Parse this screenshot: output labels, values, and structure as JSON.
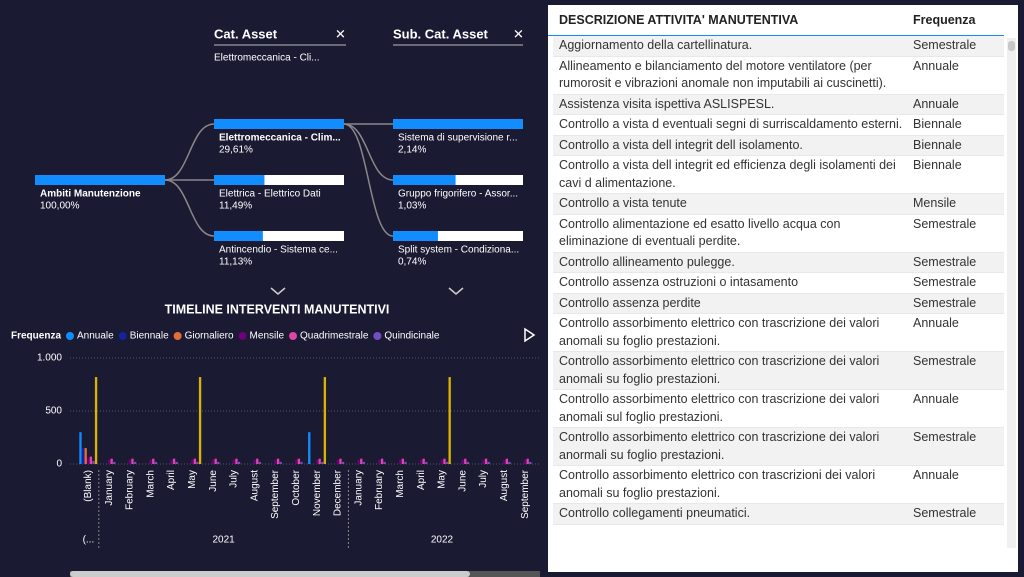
{
  "tree": {
    "levels": [
      {
        "nodes": [
          {
            "label": "Ambiti Manutenzione",
            "value": {
              "value": 100,
              "label": "100,00%"
            }
          }
        ]
      },
      {
        "header": "Cat. Asset",
        "subtitle": "Elettromeccanica - Cli...",
        "nodes": [
          {
            "label": "Elettromeccanica - Clim...",
            "value": {
              "value": 29.61,
              "label": "29,61%"
            }
          },
          {
            "label": "Elettrica - Elettrico Dati",
            "value": {
              "value": 11.49,
              "label": "11,49%"
            }
          },
          {
            "label": "Antincendio - Sistema ce...",
            "value": {
              "value": 11.13,
              "label": "11,13%"
            }
          }
        ]
      },
      {
        "header": "Sub. Cat. Asset",
        "nodes": [
          {
            "label": "Sistema di supervisione r...",
            "value": {
              "value": 2.14,
              "label": "2,14%"
            }
          },
          {
            "label": "Gruppo frigorifero - Assor...",
            "value": {
              "value": 1.03,
              "label": "1,03%"
            }
          },
          {
            "label": "Split system - Condiziona...",
            "value": {
              "value": 0.74,
              "label": "0,74%"
            }
          }
        ]
      }
    ]
  },
  "chart_data": {
    "type": "bar",
    "title": "TIMELINE INTERVENTI MANUTENTIVI",
    "legend_title": "Frequenza",
    "categories": [
      "(Blank)",
      "January",
      "February",
      "March",
      "April",
      "May",
      "June",
      "July",
      "August",
      "September",
      "October",
      "November",
      "December",
      "January",
      "February",
      "March",
      "April",
      "May",
      "June",
      "July",
      "August",
      "September"
    ],
    "years": [
      {
        "label": "(...",
        "span": [
          0,
          0
        ]
      },
      {
        "label": "2021",
        "span": [
          1,
          12
        ]
      },
      {
        "label": "2022",
        "span": [
          13,
          21
        ]
      }
    ],
    "ylim": [
      0,
      1000
    ],
    "yticks": [
      0,
      500,
      {
        "value": 1000,
        "label": "1.000"
      }
    ],
    "series": [
      {
        "name": "Annuale",
        "color": "#118dff",
        "values": [
          300,
          0,
          0,
          0,
          0,
          0,
          0,
          0,
          0,
          0,
          0,
          300,
          0,
          0,
          0,
          0,
          0,
          0,
          0,
          0,
          0,
          0
        ]
      },
      {
        "name": "Biennale",
        "color": "#12239e",
        "values": [
          150,
          0,
          0,
          0,
          0,
          0,
          0,
          0,
          0,
          0,
          0,
          0,
          0,
          0,
          0,
          0,
          0,
          0,
          0,
          0,
          0,
          0
        ]
      },
      {
        "name": "Giornaliero",
        "color": "#e66c37",
        "values": [
          150,
          0,
          0,
          0,
          0,
          0,
          0,
          0,
          0,
          0,
          0,
          0,
          0,
          0,
          0,
          0,
          0,
          0,
          0,
          0,
          0,
          0
        ]
      },
      {
        "name": "Mensile",
        "color": "#6b007b",
        "values": [
          60,
          40,
          40,
          40,
          40,
          40,
          40,
          40,
          40,
          40,
          40,
          40,
          40,
          40,
          40,
          40,
          40,
          40,
          40,
          40,
          40,
          40
        ]
      },
      {
        "name": "Quadrimestrale",
        "color": "#e044a7",
        "values": [
          70,
          50,
          50,
          50,
          50,
          50,
          50,
          50,
          50,
          50,
          50,
          50,
          50,
          50,
          50,
          50,
          50,
          50,
          50,
          50,
          50,
          50
        ]
      },
      {
        "name": "Quindicinale",
        "color": "#744ec2",
        "values": [
          30,
          20,
          20,
          20,
          20,
          20,
          20,
          20,
          20,
          20,
          20,
          20,
          20,
          20,
          20,
          20,
          20,
          20,
          20,
          20,
          20,
          20
        ]
      },
      {
        "color": "#d9b300",
        "values": [
          820,
          0,
          0,
          0,
          0,
          820,
          0,
          0,
          0,
          0,
          0,
          820,
          0,
          0,
          0,
          0,
          0,
          820,
          0,
          0,
          0,
          0
        ]
      }
    ]
  },
  "table": {
    "columns": [
      "DESCRIZIONE ATTIVITA' MANUTENTIVA",
      "Frequenza"
    ],
    "rows": [
      [
        "Aggiornamento della cartellinatura.",
        "Semestrale"
      ],
      [
        "Allineamento e bilanciamento del motore ventilatore (per rumorosit e vibrazioni anomale non imputabili ai cuscinetti).",
        "Annuale"
      ],
      [
        "Assistenza visita ispettiva ASLISPESL.",
        "Annuale"
      ],
      [
        "Controllo a vista d eventuali segni di surriscaldamento esterni.",
        "Biennale"
      ],
      [
        "Controllo a vista dell integrit dell isolamento.",
        "Biennale"
      ],
      [
        "Controllo a vista dell integrit ed efficienza degli isolamenti dei cavi d alimentazione.",
        "Biennale"
      ],
      [
        "Controllo a vista tenute",
        "Mensile"
      ],
      [
        "Controllo alimentazione ed esatto livello acqua con eliminazione di eventuali perdite.",
        "Semestrale"
      ],
      [
        "Controllo allineamento pulegge.",
        "Semestrale"
      ],
      [
        "Controllo assenza ostruzioni o intasamento",
        "Semestrale"
      ],
      [
        "Controllo assenza perdite",
        "Semestrale"
      ],
      [
        "Controllo assorbimento elettrico con trascrizione dei valori anomali su foglio prestazioni.",
        "Annuale"
      ],
      [
        "Controllo assorbimento elettrico con trascrizione dei valori anomali su foglio prestazioni.",
        "Semestrale"
      ],
      [
        "Controllo assorbimento elettrico con trascrizione dei valori anomali sul foglio prestazioni.",
        "Annuale"
      ],
      [
        "Controllo assorbimento elettrico con trascrizione dei valori anormali su foglio prestazioni.",
        "Semestrale"
      ],
      [
        "Controllo assorbimento elettrico con trascrizioni dei valori anomali su foglio prestazioni.",
        "Annuale"
      ],
      [
        "Controllo collegamenti pneumatici.",
        "Semestrale"
      ]
    ]
  }
}
